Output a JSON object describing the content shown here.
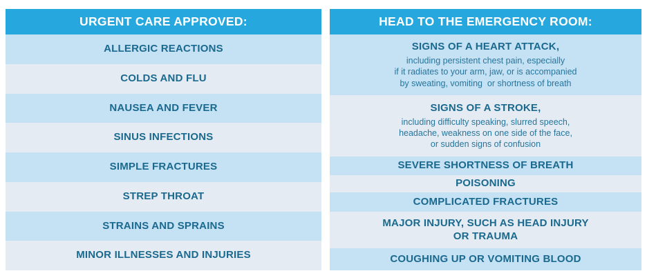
{
  "colors": {
    "header_background": "#26a7dd",
    "header_text": "#ffffff",
    "row_light_blue": "#c5e1f4",
    "row_pale_blue": "#e4ebf3",
    "item_text": "#1a698e",
    "detail_text": "#26759c"
  },
  "urgent_care": {
    "header": "URGENT CARE APPROVED:",
    "items": [
      {
        "title": "ALLERGIC REACTIONS"
      },
      {
        "title": "COLDS AND FLU"
      },
      {
        "title": "NAUSEA AND FEVER"
      },
      {
        "title": "SINUS INFECTIONS"
      },
      {
        "title": "SIMPLE FRACTURES"
      },
      {
        "title": "STREP THROAT"
      },
      {
        "title": "STRAINS AND SPRAINS"
      },
      {
        "title": "MINOR ILLNESSES AND INJURIES"
      }
    ]
  },
  "emergency_room": {
    "header": "HEAD TO THE EMERGENCY ROOM:",
    "items": [
      {
        "title": "SIGNS OF A HEART ATTACK,",
        "detail": "including persistent chest pain, especially\nif it radiates to your arm, jaw, or is accompanied\nby sweating, vomiting  or shortness of breath"
      },
      {
        "title": "SIGNS OF A STROKE,",
        "detail": "including difficulty speaking, slurred speech,\nheadache, weakness on one side of the face,\nor sudden signs of confusion"
      },
      {
        "title": "SEVERE SHORTNESS OF BREATH"
      },
      {
        "title": "POISONING"
      },
      {
        "title": "COMPLICATED FRACTURES"
      },
      {
        "title": "MAJOR INJURY, SUCH AS HEAD INJURY\nOR TRAUMA"
      },
      {
        "title": "COUGHING UP OR VOMITING BLOOD"
      }
    ]
  }
}
